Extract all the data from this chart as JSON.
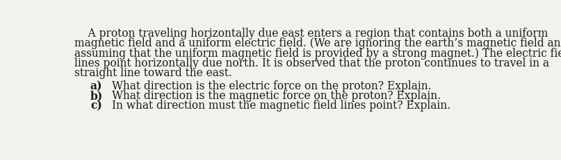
{
  "background_color": "#f2f1ec",
  "text_color": "#1a1a1a",
  "paragraph_lines": [
    "    A proton traveling horizontally due east enters a region that contains both a uniform",
    "magnetic field and a uniform electric field. (We are ignoring the earth’s magnetic field and",
    "assuming that the uniform magnetic field is provided by a strong magnet.) The electric field",
    "lines point horizontally due north. It is observed that the proton continues to travel in a",
    "straight line toward the east."
  ],
  "items": [
    {
      "label": "a)",
      "text": "What direction is the electric force on the proton? Explain."
    },
    {
      "label": "b)",
      "text": "What direction is the magnetic force on the proton? Explain."
    },
    {
      "label": "c)",
      "text": "In what direction must the magnetic field lines point? Explain."
    }
  ],
  "font_size": 11.2,
  "font_family": "DejaVu Serif",
  "fig_width": 8.07,
  "fig_height": 2.31,
  "dpi": 100
}
